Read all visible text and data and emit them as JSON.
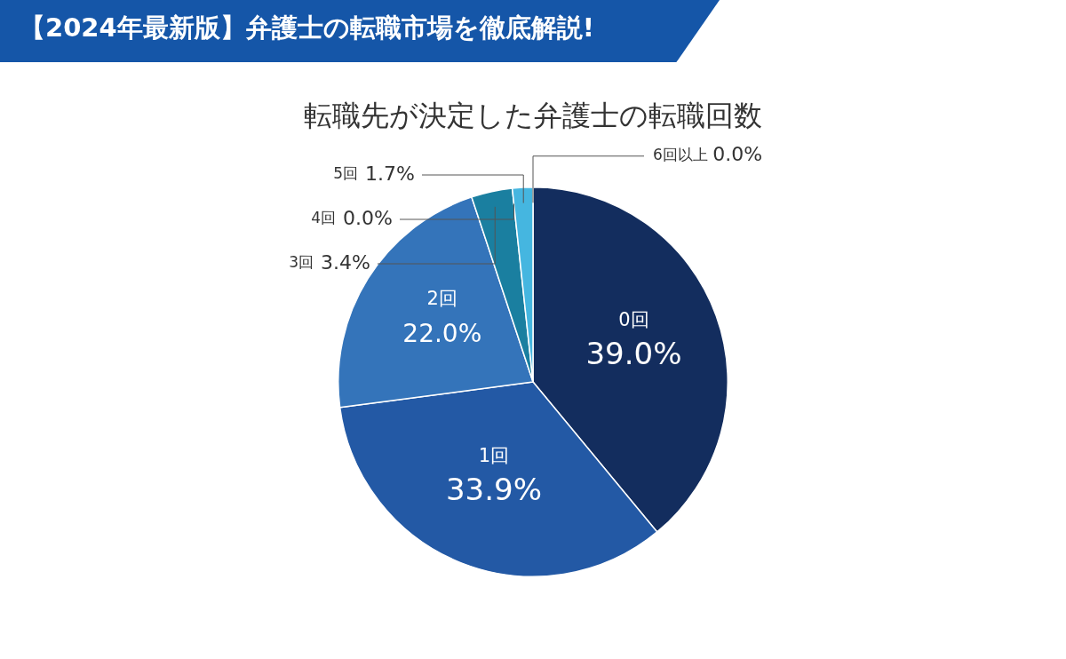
{
  "chart_data": {
    "type": "pie",
    "title": "転職先が決定した弁護士の転職回数",
    "annotations": [
      "【2024年最新版】弁護士の転職市場を徹底解説!"
    ],
    "categories": [
      "0回",
      "1回",
      "2回",
      "3回",
      "4回",
      "5回",
      "6回以上"
    ],
    "values": [
      39.0,
      33.9,
      22.0,
      3.4,
      0.0,
      1.7,
      0.0
    ],
    "value_labels": [
      "39.0%",
      "33.9%",
      "22.0%",
      "3.4%",
      "0.0%",
      "1.7%",
      "0.0%"
    ],
    "colors": [
      "#132d5e",
      "#2359a5",
      "#3474ba",
      "#1a7fa0",
      "#2b9bc8",
      "#45b6e0",
      "#8fd3ef"
    ],
    "legend": false
  }
}
